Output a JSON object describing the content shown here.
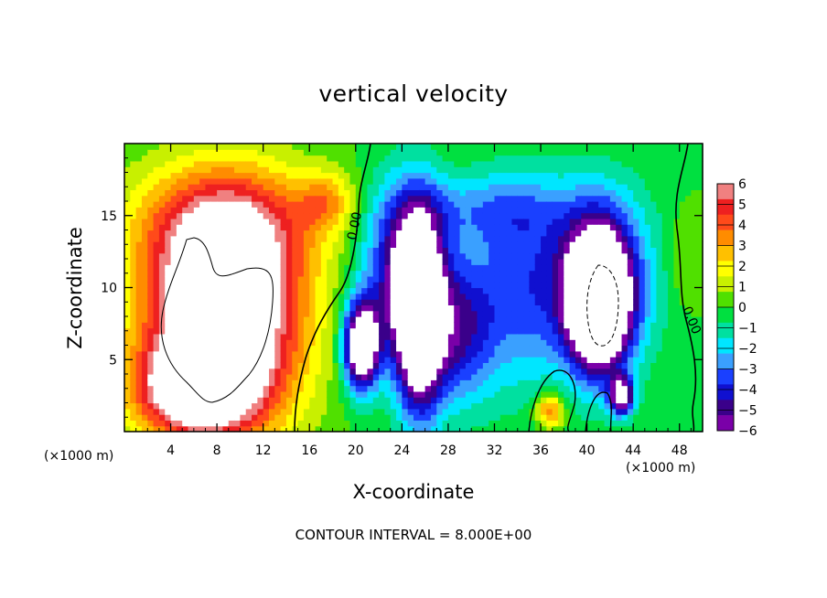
{
  "chart_data": {
    "type": "heatmap",
    "title": "vertical velocity",
    "xlabel": "X-coordinate",
    "ylabel": "Z-coordinate",
    "x_unit": "(×1000 m)",
    "xlim": [
      0,
      50
    ],
    "ylim": [
      0,
      20
    ],
    "x_ticks": [
      4,
      8,
      12,
      16,
      20,
      24,
      28,
      32,
      36,
      40,
      44,
      48
    ],
    "x_tick_labels": [
      "4",
      "8",
      "12",
      "16",
      "20",
      "24",
      "28",
      "32",
      "36",
      "40",
      "44",
      "48"
    ],
    "y_ticks": [
      5,
      10,
      15
    ],
    "y_tick_labels": [
      "5",
      "10",
      "15"
    ],
    "colorbar": {
      "levels": [
        6,
        5,
        4,
        3,
        2,
        1,
        0,
        -1,
        -2,
        -3,
        -4,
        -5,
        -6
      ],
      "labels": [
        "6",
        "5",
        "4",
        "3",
        "2",
        "1",
        "0",
        "−1",
        "−2",
        "−3",
        "−4",
        "−5",
        "−6"
      ],
      "colors": [
        "#f08080",
        "#ee2020",
        "#ff4a1a",
        "#ff8c00",
        "#ffc000",
        "#ffff00",
        "#c8f000",
        "#50e000",
        "#00e040",
        "#00e0a0",
        "#00e6ff",
        "#3aa0ff",
        "#1a40ff",
        "#1010d0",
        "#3a008a",
        "#7a00a8"
      ]
    },
    "contour_labels": [
      "0.00",
      "0.00"
    ],
    "contour_interval_text": "CONTOUR INTERVAL = 8.000E+00",
    "blobs": [
      {
        "x": 8.5,
        "z": 8.0,
        "rx": 6.5,
        "rz": 7.5,
        "value": 10
      },
      {
        "x": 9.0,
        "z": 14.5,
        "rx": 8.0,
        "rz": 4.0,
        "value": 3.5
      },
      {
        "x": 6.0,
        "z": 3.0,
        "rx": 5.0,
        "rz": 3.0,
        "value": 6
      },
      {
        "x": 17.5,
        "z": 16.0,
        "rx": 2.5,
        "rz": 2.0,
        "value": 2.5
      },
      {
        "x": 20.5,
        "z": 6.0,
        "rx": 1.5,
        "rz": 3.0,
        "value": -9
      },
      {
        "x": 25.5,
        "z": 8.0,
        "rx": 2.0,
        "rz": 6.5,
        "value": -9
      },
      {
        "x": 24.0,
        "z": 11.0,
        "rx": 3.5,
        "rz": 6.0,
        "value": -5
      },
      {
        "x": 29.0,
        "z": 7.0,
        "rx": 3.0,
        "rz": 5.0,
        "value": -4
      },
      {
        "x": 34.0,
        "z": 10.0,
        "rx": 4.0,
        "rz": 7.0,
        "value": -3
      },
      {
        "x": 31.0,
        "z": 15.5,
        "rx": 8.0,
        "rz": 2.5,
        "value": -2
      },
      {
        "x": 41.0,
        "z": 9.0,
        "rx": 2.5,
        "rz": 4.5,
        "value": -10
      },
      {
        "x": 41.0,
        "z": 10.5,
        "rx": 4.5,
        "rz": 6.0,
        "value": -5
      },
      {
        "x": 43.0,
        "z": 2.5,
        "rx": 1.0,
        "rz": 1.3,
        "value": -7
      },
      {
        "x": 36.8,
        "z": 1.5,
        "rx": 1.2,
        "rz": 1.2,
        "value": 4
      },
      {
        "x": 48.5,
        "z": 12.0,
        "rx": 1.5,
        "rz": 3.0,
        "value": 1
      }
    ]
  }
}
